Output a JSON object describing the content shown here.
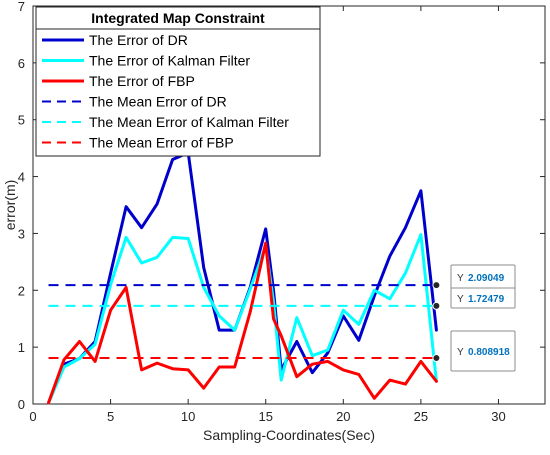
{
  "chart_data": {
    "type": "line",
    "title": "",
    "xlabel": "Sampling-Coordinates(Sec)",
    "ylabel": "error(m)",
    "xlim": [
      0,
      33
    ],
    "ylim": [
      0,
      7
    ],
    "xticks": [
      0,
      5,
      10,
      15,
      20,
      25,
      30
    ],
    "yticks": [
      0,
      1,
      2,
      3,
      4,
      5,
      6,
      7
    ],
    "grid": false,
    "legend": {
      "title": "Integrated Map Constraint",
      "placement": "top-left"
    },
    "series": [
      {
        "name": "The Error of DR",
        "color": "#0000cd",
        "style": "solid",
        "x": [
          1,
          2,
          3,
          4,
          5,
          6,
          7,
          8,
          9,
          10,
          11,
          12,
          13,
          14,
          15,
          15.5,
          16,
          17,
          18,
          19,
          20,
          21,
          22,
          23,
          24,
          25,
          26
        ],
        "values": [
          0.02,
          0.7,
          0.8,
          1.1,
          2.3,
          3.47,
          3.1,
          3.52,
          4.3,
          4.42,
          2.4,
          1.3,
          1.3,
          2.05,
          3.08,
          2.0,
          0.6,
          1.1,
          0.55,
          0.9,
          1.55,
          1.12,
          1.9,
          2.6,
          3.1,
          3.75,
          1.3
        ]
      },
      {
        "name": "The Error of Kalman Filter",
        "color": "#00ffff",
        "style": "solid",
        "x": [
          1,
          2,
          3,
          4,
          5,
          6,
          7,
          8,
          9,
          10,
          11,
          12,
          13,
          14,
          15,
          15.5,
          16,
          17,
          18,
          19,
          20,
          21,
          22,
          23,
          24,
          25,
          26
        ],
        "values": [
          0.02,
          0.65,
          0.8,
          1.05,
          2.1,
          2.93,
          2.48,
          2.58,
          2.93,
          2.91,
          2.05,
          1.55,
          1.3,
          2.02,
          2.78,
          1.8,
          0.42,
          1.52,
          0.85,
          0.95,
          1.65,
          1.4,
          2.0,
          1.85,
          2.3,
          2.98,
          0.4
        ]
      },
      {
        "name": "The Error of FBP",
        "color": "#ff0000",
        "style": "solid",
        "x": [
          1,
          2,
          3,
          4,
          5,
          6,
          7,
          8,
          9,
          10,
          11,
          12,
          13,
          14,
          15,
          15.5,
          16,
          17,
          18,
          19,
          20,
          21,
          22,
          23,
          24,
          25,
          26
        ],
        "values": [
          0.02,
          0.78,
          1.1,
          0.75,
          1.65,
          2.05,
          0.6,
          0.72,
          0.62,
          0.6,
          0.28,
          0.65,
          0.65,
          1.62,
          2.83,
          1.5,
          1.2,
          0.48,
          0.7,
          0.75,
          0.6,
          0.52,
          0.1,
          0.42,
          0.35,
          0.75,
          0.4
        ]
      },
      {
        "name": "The Mean Error of DR",
        "color": "#0000cd",
        "style": "dashed",
        "x": [
          1,
          26
        ],
        "values": [
          2.09049,
          2.09049
        ]
      },
      {
        "name": "The Mean Error of Kalman Filter",
        "color": "#00ffff",
        "style": "dashed",
        "x": [
          1,
          26
        ],
        "values": [
          1.72479,
          1.72479
        ]
      },
      {
        "name": "The Mean Error of FBP",
        "color": "#ff0000",
        "style": "dashed",
        "x": [
          1,
          26
        ],
        "values": [
          0.808918,
          0.808918
        ]
      }
    ],
    "datatips": [
      {
        "x": 26,
        "y": 2.09049,
        "label": "Y",
        "value": "2.09049"
      },
      {
        "x": 26,
        "y": 1.72479,
        "label": "Y",
        "value": "1.72479"
      },
      {
        "x": 26,
        "y": 0.808918,
        "label": "Y",
        "value": "0.808918"
      }
    ]
  }
}
